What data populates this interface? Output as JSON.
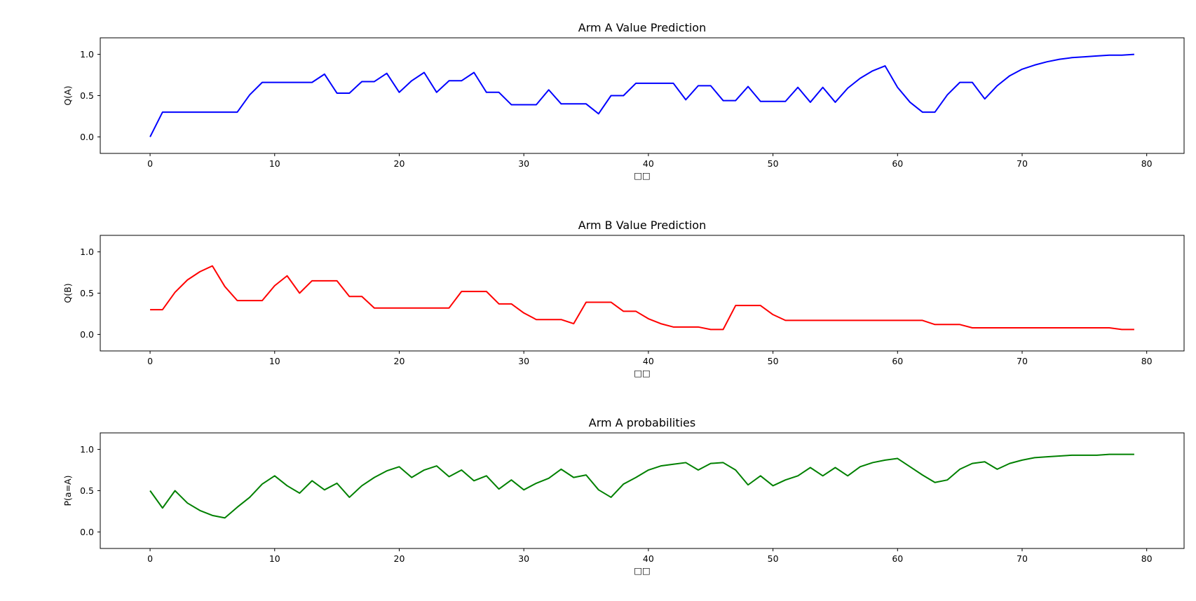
{
  "chart_data": [
    {
      "type": "line",
      "title": "Arm A Value Prediction",
      "xlabel": "□□",
      "ylabel": "Q(A)",
      "xlim": [
        -4,
        83
      ],
      "ylim": [
        -0.2,
        1.2
      ],
      "xticks": [
        0,
        10,
        20,
        30,
        40,
        50,
        60,
        70,
        80
      ],
      "xtick_labels": [
        "0",
        "10",
        "20",
        "30",
        "40",
        "50",
        "60",
        "70",
        "80"
      ],
      "yticks": [
        0.0,
        0.5,
        1.0
      ],
      "ytick_labels": [
        "0.0",
        "0.5",
        "1.0"
      ],
      "grid": false,
      "series": [
        {
          "color": "#0000ff",
          "x": [
            0,
            1,
            2,
            3,
            4,
            5,
            6,
            7,
            8,
            9,
            10,
            11,
            12,
            13,
            14,
            15,
            16,
            17,
            18,
            19,
            20,
            21,
            22,
            23,
            24,
            25,
            26,
            27,
            28,
            29,
            30,
            31,
            32,
            33,
            34,
            35,
            36,
            37,
            38,
            39,
            40,
            41,
            42,
            43,
            44,
            45,
            46,
            47,
            48,
            49,
            50,
            51,
            52,
            53,
            54,
            55,
            56,
            57,
            58,
            59,
            60,
            61,
            62,
            63,
            64,
            65,
            66,
            67,
            68,
            69,
            70,
            71,
            72,
            73,
            74,
            75,
            76,
            77,
            78,
            79
          ],
          "values": [
            0.0,
            0.3,
            0.3,
            0.3,
            0.3,
            0.3,
            0.3,
            0.3,
            0.51,
            0.66,
            0.66,
            0.66,
            0.66,
            0.66,
            0.76,
            0.53,
            0.53,
            0.67,
            0.67,
            0.77,
            0.54,
            0.68,
            0.78,
            0.54,
            0.68,
            0.68,
            0.78,
            0.54,
            0.54,
            0.39,
            0.39,
            0.39,
            0.57,
            0.4,
            0.4,
            0.4,
            0.28,
            0.5,
            0.5,
            0.65,
            0.65,
            0.65,
            0.65,
            0.45,
            0.62,
            0.62,
            0.44,
            0.44,
            0.61,
            0.43,
            0.43,
            0.43,
            0.6,
            0.42,
            0.6,
            0.42,
            0.59,
            0.71,
            0.8,
            0.86,
            0.6,
            0.42,
            0.3,
            0.3,
            0.51,
            0.66,
            0.66,
            0.46,
            0.62,
            0.74,
            0.82,
            0.87,
            0.91,
            0.94,
            0.96,
            0.97,
            0.98,
            0.99,
            0.99,
            1.0
          ]
        }
      ]
    },
    {
      "type": "line",
      "title": "Arm B Value Prediction",
      "xlabel": "□□",
      "ylabel": "Q(B)",
      "xlim": [
        -4,
        83
      ],
      "ylim": [
        -0.2,
        1.2
      ],
      "xticks": [
        0,
        10,
        20,
        30,
        40,
        50,
        60,
        70,
        80
      ],
      "xtick_labels": [
        "0",
        "10",
        "20",
        "30",
        "40",
        "50",
        "60",
        "70",
        "80"
      ],
      "yticks": [
        0.0,
        0.5,
        1.0
      ],
      "ytick_labels": [
        "0.0",
        "0.5",
        "1.0"
      ],
      "grid": false,
      "series": [
        {
          "color": "#ff0000",
          "x": [
            0,
            1,
            2,
            3,
            4,
            5,
            6,
            7,
            8,
            9,
            10,
            11,
            12,
            13,
            14,
            15,
            16,
            17,
            18,
            19,
            20,
            21,
            22,
            23,
            24,
            25,
            26,
            27,
            28,
            29,
            30,
            31,
            32,
            33,
            34,
            35,
            36,
            37,
            38,
            39,
            40,
            41,
            42,
            43,
            44,
            45,
            46,
            47,
            48,
            49,
            50,
            51,
            52,
            53,
            54,
            55,
            56,
            57,
            58,
            59,
            60,
            61,
            62,
            63,
            64,
            65,
            66,
            67,
            68,
            69,
            70,
            71,
            72,
            73,
            74,
            75,
            76,
            77,
            78,
            79
          ],
          "values": [
            0.3,
            0.3,
            0.51,
            0.66,
            0.76,
            0.83,
            0.58,
            0.41,
            0.41,
            0.41,
            0.59,
            0.71,
            0.5,
            0.65,
            0.65,
            0.65,
            0.46,
            0.46,
            0.32,
            0.32,
            0.32,
            0.32,
            0.32,
            0.32,
            0.32,
            0.52,
            0.52,
            0.52,
            0.37,
            0.37,
            0.26,
            0.18,
            0.18,
            0.18,
            0.13,
            0.39,
            0.39,
            0.39,
            0.28,
            0.28,
            0.19,
            0.13,
            0.09,
            0.09,
            0.09,
            0.06,
            0.06,
            0.35,
            0.35,
            0.35,
            0.24,
            0.17,
            0.17,
            0.17,
            0.17,
            0.17,
            0.17,
            0.17,
            0.17,
            0.17,
            0.17,
            0.17,
            0.17,
            0.12,
            0.12,
            0.12,
            0.08,
            0.08,
            0.08,
            0.08,
            0.08,
            0.08,
            0.08,
            0.08,
            0.08,
            0.08,
            0.08,
            0.08,
            0.06,
            0.06
          ]
        }
      ]
    },
    {
      "type": "line",
      "title": "Arm A probabilities",
      "xlabel": "□□",
      "ylabel": "P(a=A)",
      "xlim": [
        -4,
        83
      ],
      "ylim": [
        -0.2,
        1.2
      ],
      "xticks": [
        0,
        10,
        20,
        30,
        40,
        50,
        60,
        70,
        80
      ],
      "xtick_labels": [
        "0",
        "10",
        "20",
        "30",
        "40",
        "50",
        "60",
        "70",
        "80"
      ],
      "yticks": [
        0.0,
        0.5,
        1.0
      ],
      "ytick_labels": [
        "0.0",
        "0.5",
        "1.0"
      ],
      "grid": false,
      "series": [
        {
          "color": "#008000",
          "x": [
            0,
            1,
            2,
            3,
            4,
            5,
            6,
            7,
            8,
            9,
            10,
            11,
            12,
            13,
            14,
            15,
            16,
            17,
            18,
            19,
            20,
            21,
            22,
            23,
            24,
            25,
            26,
            27,
            28,
            29,
            30,
            31,
            32,
            33,
            34,
            35,
            36,
            37,
            38,
            39,
            40,
            41,
            42,
            43,
            44,
            45,
            46,
            47,
            48,
            49,
            50,
            51,
            52,
            53,
            54,
            55,
            56,
            57,
            58,
            59,
            60,
            61,
            62,
            63,
            64,
            65,
            66,
            67,
            68,
            69,
            70,
            71,
            72,
            73,
            74,
            75,
            76,
            77,
            78,
            79
          ],
          "values": [
            0.5,
            0.29,
            0.5,
            0.35,
            0.26,
            0.2,
            0.17,
            0.3,
            0.42,
            0.58,
            0.68,
            0.56,
            0.47,
            0.62,
            0.51,
            0.59,
            0.42,
            0.56,
            0.66,
            0.74,
            0.79,
            0.66,
            0.75,
            0.8,
            0.67,
            0.75,
            0.62,
            0.68,
            0.52,
            0.63,
            0.51,
            0.59,
            0.65,
            0.76,
            0.66,
            0.69,
            0.51,
            0.42,
            0.58,
            0.66,
            0.75,
            0.8,
            0.82,
            0.84,
            0.75,
            0.83,
            0.84,
            0.75,
            0.57,
            0.68,
            0.56,
            0.63,
            0.68,
            0.78,
            0.68,
            0.78,
            0.68,
            0.79,
            0.84,
            0.87,
            0.89,
            0.79,
            0.69,
            0.6,
            0.63,
            0.76,
            0.83,
            0.85,
            0.76,
            0.83,
            0.87,
            0.9,
            0.91,
            0.92,
            0.93,
            0.93,
            0.93,
            0.94,
            0.94,
            0.94
          ]
        }
      ]
    }
  ]
}
